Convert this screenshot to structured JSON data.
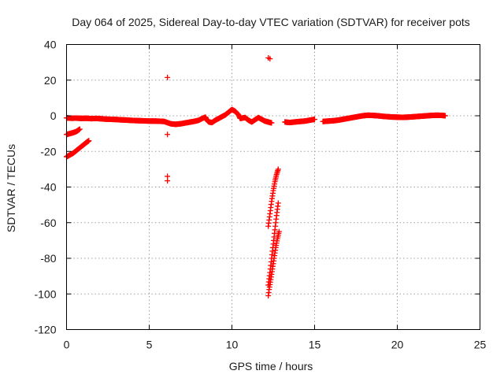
{
  "chart_data": {
    "type": "scatter",
    "title": "Day 064 of 2025, Sidereal Day-to-day VTEC variation (SDTVAR) for receiver pots",
    "xlabel": "GPS time / hours",
    "ylabel": "SDTVAR / TECUs",
    "xlim": [
      0,
      25
    ],
    "ylim": [
      -120,
      40
    ],
    "x_ticks": [
      "0",
      "5",
      "10",
      "15",
      "20",
      "25"
    ],
    "y_ticks": [
      "40",
      "20",
      "0",
      "-20",
      "-40",
      "-60",
      "-80",
      "-100",
      "-120"
    ],
    "grid": true,
    "marker": "plus",
    "color": "#ff0000",
    "series": [
      {
        "points": [
          [
            0.0,
            -1.2
          ],
          [
            0.3,
            -1.4
          ],
          [
            0.6,
            -1.3
          ],
          [
            0.9,
            -1.5
          ],
          [
            1.2,
            -1.4
          ],
          [
            1.5,
            -1.6
          ],
          [
            1.8,
            -1.5
          ],
          [
            2.1,
            -1.7
          ],
          [
            2.4,
            -1.9
          ],
          [
            2.7,
            -2.0
          ],
          [
            3.0,
            -2.1
          ],
          [
            3.3,
            -2.3
          ],
          [
            3.6,
            -2.4
          ],
          [
            3.9,
            -2.6
          ],
          [
            4.2,
            -2.7
          ],
          [
            4.5,
            -2.8
          ],
          [
            4.8,
            -2.9
          ],
          [
            5.1,
            -3.0
          ],
          [
            5.4,
            -3.0
          ],
          [
            5.7,
            -3.1
          ],
          [
            5.9,
            -3.2
          ],
          [
            6.3,
            -4.5
          ],
          [
            6.6,
            -4.8
          ],
          [
            6.9,
            -4.5
          ],
          [
            7.2,
            -4.0
          ],
          [
            7.5,
            -3.5
          ],
          [
            7.8,
            -3.0
          ],
          [
            8.0,
            -2.5
          ],
          [
            8.2,
            -1.5
          ],
          [
            8.4,
            -0.8
          ],
          [
            8.5,
            -2.5
          ],
          [
            8.6,
            -3.5
          ],
          [
            8.8,
            -3.8
          ],
          [
            9.0,
            -2.5
          ],
          [
            9.2,
            -1.5
          ],
          [
            9.4,
            -0.5
          ],
          [
            9.6,
            0.5
          ],
          [
            9.8,
            2.0
          ],
          [
            10.0,
            3.5
          ],
          [
            10.2,
            2.5
          ],
          [
            10.4,
            0.5
          ],
          [
            10.5,
            -1.5
          ],
          [
            10.8,
            -1.0
          ],
          [
            11.0,
            -2.5
          ],
          [
            11.2,
            -3.5
          ],
          [
            11.6,
            -1.0
          ],
          [
            11.8,
            -2.0
          ],
          [
            12.0,
            -3.0
          ],
          [
            12.2,
            -3.5
          ],
          [
            12.4,
            -4.0
          ],
          [
            13.2,
            -3.5
          ],
          [
            13.5,
            -3.8
          ],
          [
            13.8,
            -3.5
          ],
          [
            14.1,
            -3.2
          ],
          [
            14.4,
            -3.0
          ],
          [
            14.7,
            -2.5
          ],
          [
            15.0,
            -2.0
          ],
          [
            15.5,
            -3.2
          ],
          [
            15.8,
            -3.0
          ],
          [
            16.1,
            -2.8
          ],
          [
            16.4,
            -2.5
          ],
          [
            16.7,
            -2.0
          ],
          [
            17.0,
            -1.5
          ],
          [
            17.3,
            -1.0
          ],
          [
            17.6,
            -0.5
          ],
          [
            17.9,
            0.0
          ],
          [
            18.2,
            0.3
          ],
          [
            18.5,
            0.2
          ],
          [
            18.8,
            0.0
          ],
          [
            19.1,
            -0.3
          ],
          [
            19.4,
            -0.5
          ],
          [
            19.7,
            -0.7
          ],
          [
            20.0,
            -0.8
          ],
          [
            20.3,
            -0.9
          ],
          [
            20.6,
            -0.8
          ],
          [
            20.9,
            -0.6
          ],
          [
            21.2,
            -0.4
          ],
          [
            21.5,
            -0.2
          ],
          [
            21.8,
            0.0
          ],
          [
            22.1,
            0.2
          ],
          [
            22.4,
            0.3
          ],
          [
            22.7,
            0.2
          ],
          [
            22.9,
            0.0
          ]
        ]
      },
      {
        "points": [
          [
            0.0,
            -10.5
          ],
          [
            0.2,
            -10.0
          ],
          [
            0.4,
            -9.5
          ],
          [
            0.6,
            -8.8
          ],
          [
            0.8,
            -7.5
          ]
        ]
      },
      {
        "points": [
          [
            0.0,
            -23.0
          ],
          [
            0.2,
            -22.0
          ],
          [
            0.4,
            -21.0
          ],
          [
            0.6,
            -19.5
          ],
          [
            0.8,
            -18.0
          ],
          [
            1.0,
            -16.5
          ],
          [
            1.2,
            -15.0
          ],
          [
            1.35,
            -14.0
          ]
        ]
      },
      {
        "points": [
          [
            6.1,
            21.5
          ],
          [
            6.1,
            -10.5
          ],
          [
            6.1,
            -34.0
          ],
          [
            6.1,
            -36.5
          ],
          [
            12.2,
            32.5
          ],
          [
            12.3,
            32.0
          ]
        ]
      },
      {
        "points": [
          [
            12.2,
            -62.0
          ],
          [
            12.3,
            -55.0
          ],
          [
            12.4,
            -48.0
          ],
          [
            12.5,
            -42.0
          ],
          [
            12.6,
            -37.0
          ],
          [
            12.7,
            -33.0
          ],
          [
            12.8,
            -30.0
          ]
        ]
      },
      {
        "points": [
          [
            12.2,
            -95.0
          ],
          [
            12.3,
            -88.0
          ],
          [
            12.4,
            -80.0
          ],
          [
            12.5,
            -72.0
          ],
          [
            12.6,
            -64.0
          ],
          [
            12.7,
            -56.0
          ],
          [
            12.8,
            -49.0
          ]
        ]
      },
      {
        "points": [
          [
            12.2,
            -101.0
          ],
          [
            12.25,
            -97.5
          ],
          [
            12.35,
            -92.0
          ],
          [
            12.45,
            -86.0
          ],
          [
            12.55,
            -80.0
          ],
          [
            12.65,
            -74.0
          ],
          [
            12.75,
            -69.0
          ],
          [
            12.85,
            -65.0
          ]
        ]
      }
    ]
  }
}
